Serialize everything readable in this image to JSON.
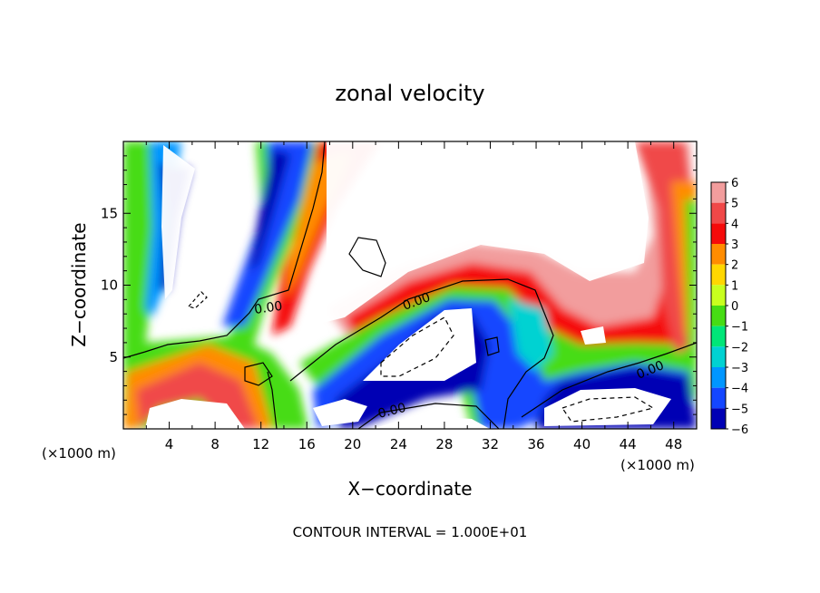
{
  "chart_data": {
    "type": "heatmap",
    "title": "zonal velocity",
    "xlabel": "X−coordinate",
    "ylabel": "Z−coordinate",
    "x_unit_left": "(×1000 m)",
    "x_unit_right": "(×1000 m)",
    "footer": "CONTOUR INTERVAL = 1.000E+01",
    "xlim": [
      0,
      50
    ],
    "ylim": [
      0,
      20
    ],
    "x_ticks": [
      "4",
      "8",
      "12",
      "16",
      "20",
      "24",
      "28",
      "32",
      "36",
      "40",
      "44",
      "48"
    ],
    "y_ticks": [
      "5",
      "10",
      "15"
    ],
    "colorbar_levels": [
      "6",
      "5",
      "4",
      "3",
      "2",
      "1",
      "0",
      "−1",
      "−2",
      "−3",
      "−4",
      "−5",
      "−6"
    ],
    "colorbar_range": [
      -6,
      6
    ],
    "contour_labels": [
      "0.00",
      "0.00",
      "0.00",
      "0.00"
    ],
    "colors": {
      "saturated_high": "#ffffff",
      "6": "#f29d9d",
      "5": "#f04848",
      "4": "#f50a0a",
      "3": "#ff8c00",
      "2": "#ffd700",
      "1": "#c8ff1e",
      "0": "#46dc14",
      "-1": "#00e678",
      "-2": "#00d2d2",
      "-3": "#0096ff",
      "-4": "#1446ff",
      "-5": "#0000b4",
      "-6": "#6e14b4"
    }
  }
}
